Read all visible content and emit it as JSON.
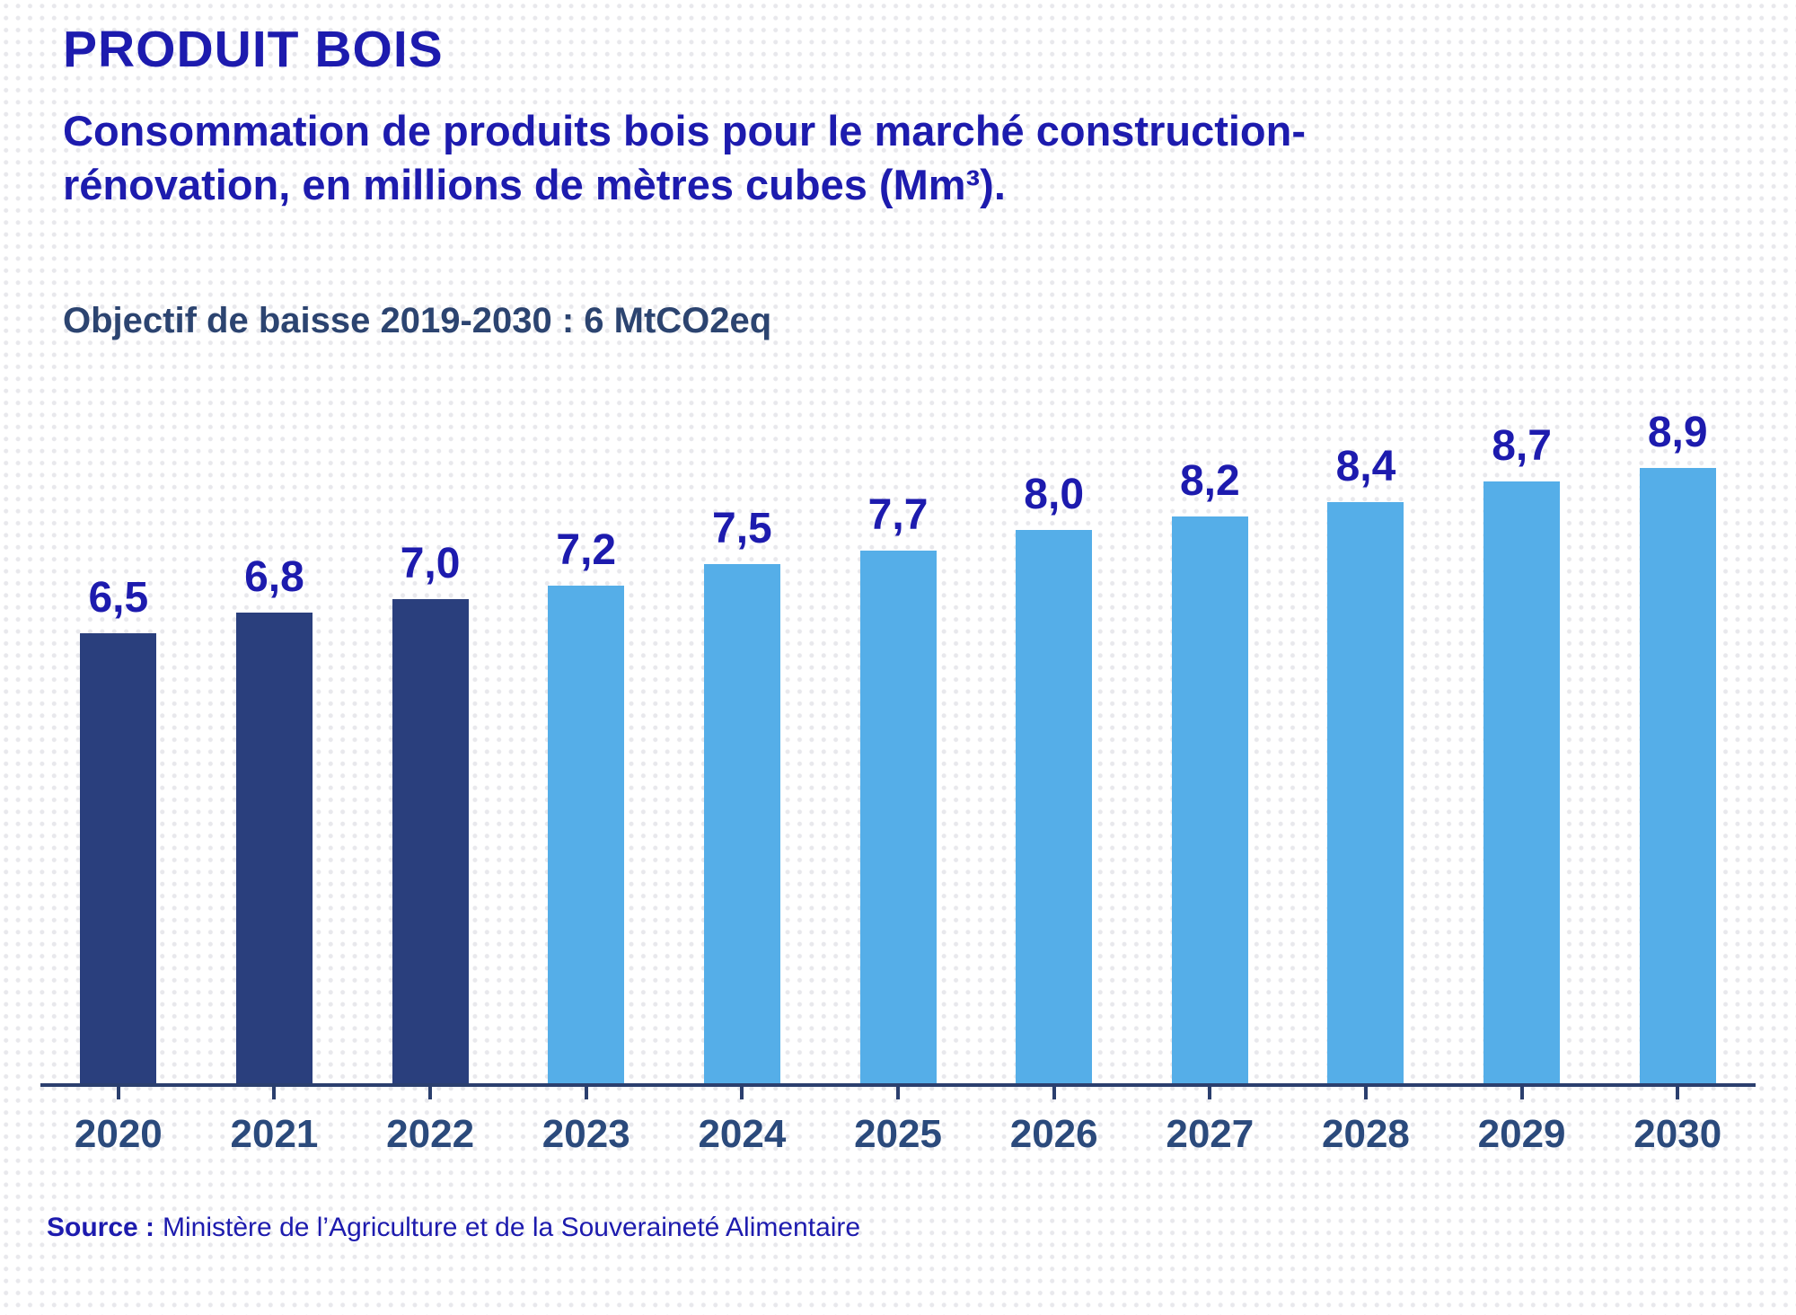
{
  "header": {
    "title": "PRODUIT BOIS",
    "subtitle": "Consommation de produits bois pour le marché construction-rénovation, en millions de mètres cubes (Mm³).",
    "objective": "Objectif de baisse 2019-2030 : 6 MtCO2eq"
  },
  "chart_data": {
    "type": "bar",
    "title": "Consommation de produits bois pour le marché construction-rénovation, en millions de mètres cubes (Mm³)",
    "categories": [
      "2020",
      "2021",
      "2022",
      "2023",
      "2024",
      "2025",
      "2026",
      "2027",
      "2028",
      "2029",
      "2030"
    ],
    "values": [
      6.5,
      6.8,
      7.0,
      7.2,
      7.5,
      7.7,
      8.0,
      8.2,
      8.4,
      8.7,
      8.9
    ],
    "value_labels": [
      "6,5",
      "6,8",
      "7,0",
      "7,2",
      "7,5",
      "7,7",
      "8,0",
      "8,2",
      "8,4",
      "8,7",
      "8,9"
    ],
    "actual_count": 3,
    "xlabel": "",
    "ylabel": "Mm³",
    "ylim": [
      0,
      9.5
    ],
    "grid": false,
    "legend_position": "none",
    "colors": {
      "actual": "#2a3f7d",
      "projected": "#55aee8",
      "value_label": "#1d1bae",
      "axis": "#2b3f6e",
      "year_label": "#2b4a7c"
    }
  },
  "source": {
    "label": "Source :",
    "text": "Ministère de l’Agriculture et de la Souveraineté Alimentaire"
  }
}
